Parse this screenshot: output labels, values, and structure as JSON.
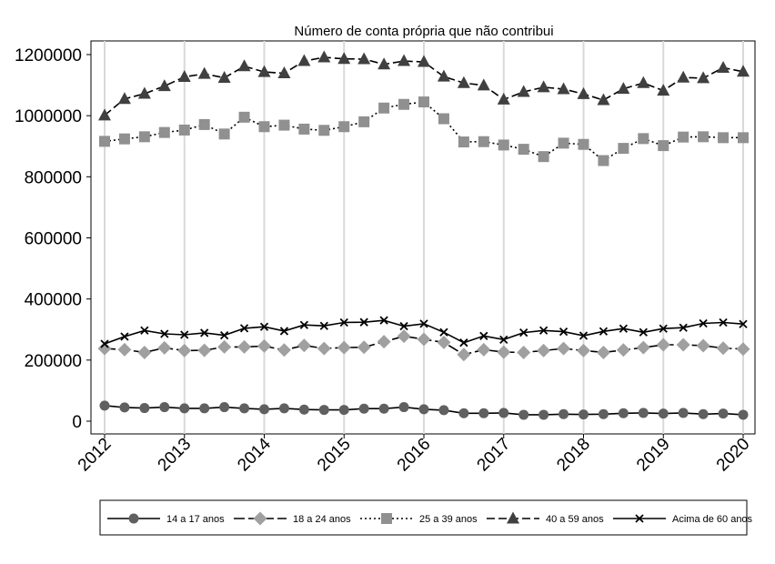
{
  "chart_data": {
    "type": "line",
    "title": "Número de conta própria que não contribui",
    "xlabel": "",
    "ylabel": "",
    "ylim": [
      0,
      1200000
    ],
    "yticks": [
      0,
      200000,
      400000,
      600000,
      800000,
      1000000,
      1200000
    ],
    "xlim": [
      2012,
      2020
    ],
    "xticks": [
      2012,
      2013,
      2014,
      2015,
      2016,
      2017,
      2018,
      2019,
      2020
    ],
    "grid": "vertical lines at each year",
    "legend_position": "bottom",
    "x": [
      2012.0,
      2012.25,
      2012.5,
      2012.75,
      2013.0,
      2013.25,
      2013.5,
      2013.75,
      2014.0,
      2014.25,
      2014.5,
      2014.75,
      2015.0,
      2015.25,
      2015.5,
      2015.75,
      2016.0,
      2016.25,
      2016.5,
      2016.75,
      2017.0,
      2017.25,
      2017.5,
      2017.75,
      2018.0,
      2018.25,
      2018.5,
      2018.75,
      2019.0,
      2019.25,
      2019.5,
      2019.75,
      2020.0
    ],
    "series": [
      {
        "name": "14 a 17 anos",
        "marker": "circle",
        "dash": "solid",
        "color": "#606060",
        "values": [
          51000,
          45000,
          43000,
          46000,
          42000,
          42000,
          46000,
          42000,
          39000,
          42000,
          38000,
          37000,
          37000,
          41000,
          41000,
          46000,
          39000,
          36000,
          26000,
          26000,
          27000,
          21000,
          21000,
          23000,
          22000,
          23000,
          26000,
          27000,
          25000,
          27000,
          23000,
          25000,
          21000
        ]
      },
      {
        "name": "18 a 24 anos",
        "marker": "diamond",
        "dash": "longdash",
        "color": "#a0a0a0",
        "values": [
          238000,
          234000,
          225000,
          240000,
          231000,
          232000,
          243000,
          243000,
          246000,
          233000,
          248000,
          238000,
          241000,
          242000,
          260000,
          278000,
          268000,
          258000,
          218000,
          234000,
          226000,
          225000,
          231000,
          238000,
          231000,
          225000,
          233000,
          241000,
          250000,
          250000,
          247000,
          239000,
          236000
        ]
      },
      {
        "name": "25 a 39 anos",
        "marker": "square",
        "dash": "dotted",
        "color": "#909090",
        "values": [
          916000,
          924000,
          931000,
          945000,
          953000,
          971000,
          940000,
          995000,
          964000,
          969000,
          956000,
          952000,
          964000,
          980000,
          1025000,
          1037000,
          1045000,
          990000,
          914000,
          915000,
          904000,
          890000,
          866000,
          910000,
          906000,
          853000,
          893000,
          925000,
          902000,
          930000,
          931000,
          928000,
          928000
        ]
      },
      {
        "name": "40 a 59 anos",
        "marker": "triangle",
        "dash": "dash",
        "color": "#404040",
        "values": [
          1001000,
          1055000,
          1072000,
          1097000,
          1127000,
          1137000,
          1124000,
          1162000,
          1143000,
          1139000,
          1179000,
          1191000,
          1186000,
          1185000,
          1168000,
          1179000,
          1176000,
          1128000,
          1107000,
          1099000,
          1053000,
          1078000,
          1093000,
          1087000,
          1071000,
          1051000,
          1088000,
          1107000,
          1082000,
          1125000,
          1123000,
          1157000,
          1144000
        ]
      },
      {
        "name": "Acima de 60 anos",
        "marker": "x",
        "dash": "solid",
        "color": "#000000",
        "values": [
          253000,
          277000,
          297000,
          286000,
          283000,
          289000,
          281000,
          304000,
          309000,
          295000,
          315000,
          312000,
          323000,
          324000,
          330000,
          311000,
          319000,
          291000,
          257000,
          279000,
          267000,
          290000,
          297000,
          293000,
          280000,
          294000,
          303000,
          291000,
          303000,
          306000,
          320000,
          323000,
          318000
        ]
      }
    ]
  }
}
